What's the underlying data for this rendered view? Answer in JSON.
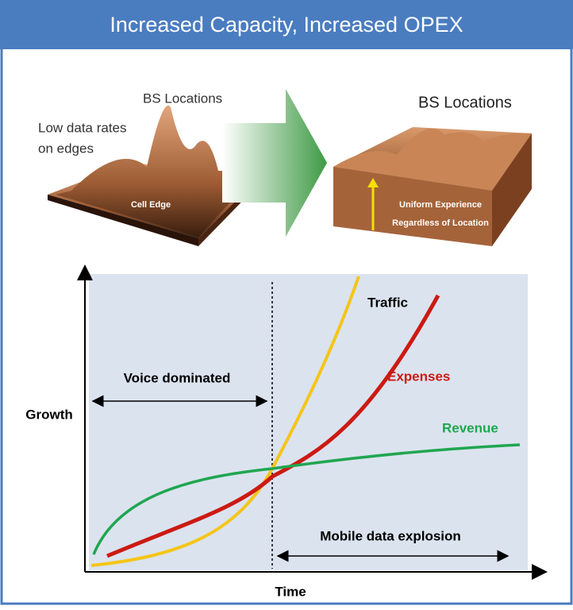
{
  "header": {
    "title": "Increased Capacity, Increased OPEX"
  },
  "top": {
    "left_label": "BS Locations",
    "left_edge_label_line1": "Low data rates",
    "left_edge_label_line2": "on edges",
    "left_surface_label": "Cell Edge",
    "right_label": "BS Locations",
    "right_surface_label_line1": "Uniform Experience",
    "right_surface_label_line2": "Regardless of Location"
  },
  "graph": {
    "y_axis_label": "Growth",
    "x_axis_label": "Time",
    "curves": [
      "Traffic",
      "Expenses",
      "Revenue"
    ],
    "phase_left": "Voice dominated",
    "phase_right": "Mobile data explosion"
  }
}
